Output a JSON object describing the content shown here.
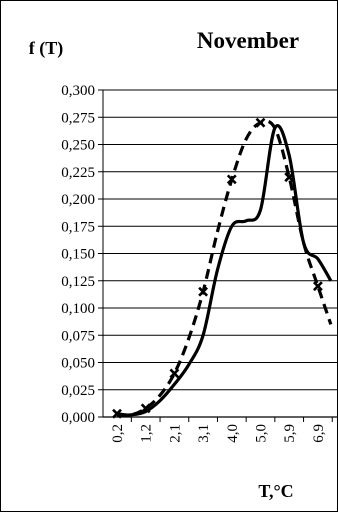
{
  "chart_data": {
    "type": "line",
    "title": "November",
    "ylabel": "f (T)",
    "xlabel": "T,°C",
    "ylim": [
      0,
      0.3
    ],
    "yticks": [
      "0,000",
      "0,025",
      "0,050",
      "0,075",
      "0,100",
      "0,125",
      "0,150",
      "0,175",
      "0,200",
      "0,225",
      "0,250",
      "0,275",
      "0,300"
    ],
    "categories": [
      "0,2",
      "1,2",
      "2,1",
      "3,1",
      "4,0",
      "5,0",
      "5,9",
      "6,9"
    ],
    "grid": "horizontal",
    "series": [
      {
        "style": "solid",
        "x": [
          0.0,
          0.5,
          1.0,
          1.5,
          2.0,
          2.5,
          3.0,
          3.5,
          4.0,
          4.5,
          5.0,
          5.5,
          6.0,
          6.5,
          7.0,
          7.45
        ],
        "values": [
          0.002,
          0.002,
          0.005,
          0.015,
          0.03,
          0.048,
          0.075,
          0.135,
          0.175,
          0.18,
          0.19,
          0.265,
          0.24,
          0.16,
          0.145,
          0.125
        ]
      },
      {
        "style": "dashed",
        "marker": "x",
        "x": [
          0.0,
          0.5,
          1.0,
          1.5,
          2.0,
          2.5,
          3.0,
          3.5,
          4.0,
          4.5,
          5.0,
          5.5,
          6.0,
          6.5,
          7.0,
          7.45
        ],
        "values": [
          0.003,
          0.002,
          0.008,
          0.02,
          0.04,
          0.072,
          0.115,
          0.17,
          0.218,
          0.255,
          0.27,
          0.265,
          0.22,
          0.16,
          0.12,
          0.085
        ],
        "marker_x": [
          0,
          1,
          2,
          3,
          4,
          5,
          6,
          7
        ],
        "marker_values": [
          0.003,
          0.008,
          0.04,
          0.115,
          0.218,
          0.27,
          0.22,
          0.12
        ]
      }
    ]
  }
}
